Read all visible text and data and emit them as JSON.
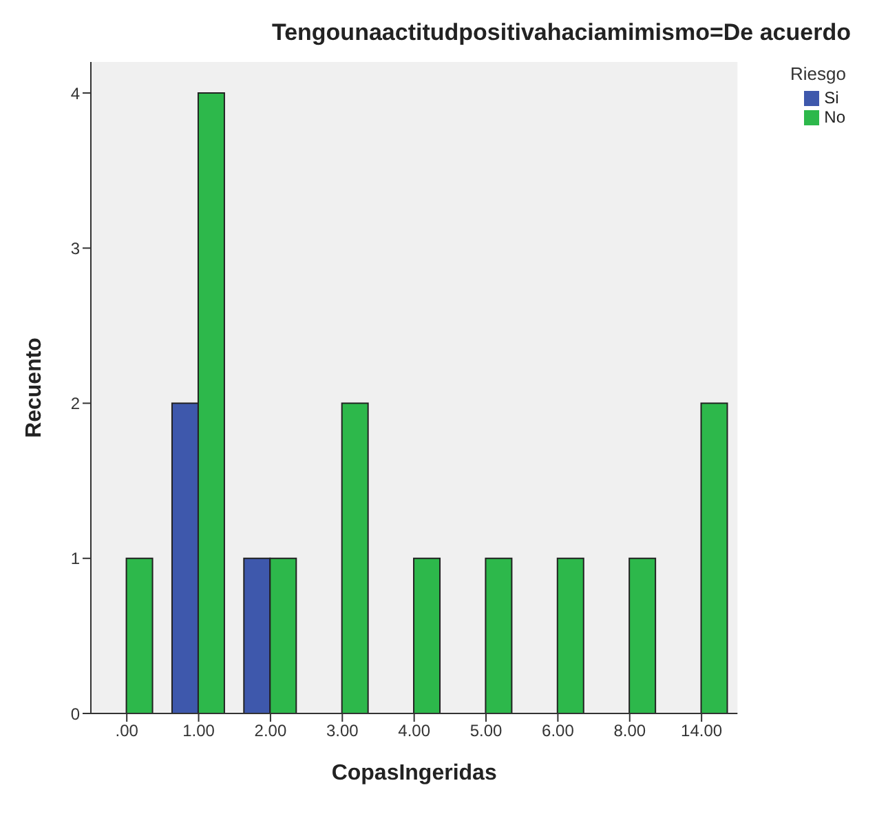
{
  "chart_data": {
    "type": "bar",
    "title": "Tengounaactitudpositivahaciamimismo=De acuerdo",
    "xlabel": "CopasIngeridas",
    "ylabel": "Recuento",
    "legend_title": "Riesgo",
    "categories": [
      ".00",
      "1.00",
      "2.00",
      "3.00",
      "4.00",
      "5.00",
      "6.00",
      "8.00",
      "14.00"
    ],
    "series": [
      {
        "name": "Si",
        "color": "#3e58ac",
        "values": [
          null,
          2,
          1,
          null,
          null,
          null,
          null,
          null,
          null
        ]
      },
      {
        "name": "No",
        "color": "#2db84b",
        "values": [
          1,
          4,
          1,
          2,
          1,
          1,
          1,
          1,
          2
        ]
      }
    ],
    "ylim": [
      0,
      4.2
    ],
    "yticks": [
      0,
      1,
      2,
      3,
      4
    ],
    "grid": false,
    "legend": "top right"
  }
}
